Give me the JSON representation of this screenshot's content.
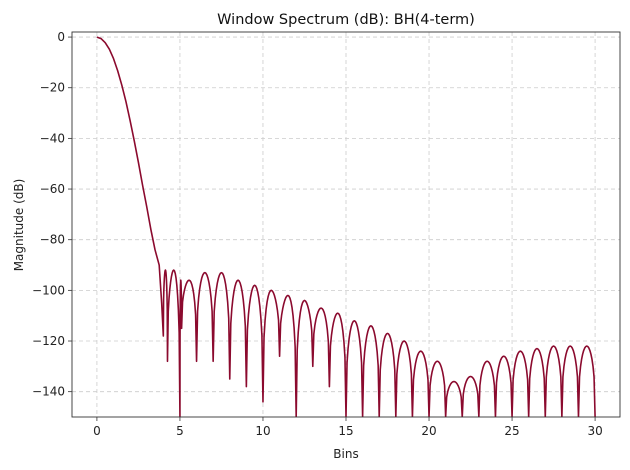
{
  "chart_data": {
    "type": "line",
    "title": "Window Spectrum (dB): BH(4-term)",
    "xlabel": "Bins",
    "ylabel": "Magnitude (dB)",
    "xlim": [
      -1.5,
      31.5
    ],
    "ylim": [
      -150,
      2
    ],
    "xticks": [
      0,
      5,
      10,
      15,
      20,
      25,
      30
    ],
    "yticks": [
      0,
      -20,
      -40,
      -60,
      -80,
      -100,
      -120,
      -140
    ],
    "grid": true,
    "series": [
      {
        "color": "#8b0a2e",
        "x": [
          0,
          0.25,
          0.5,
          0.75,
          1.0,
          1.25,
          1.5,
          1.75,
          2.0,
          2.25,
          2.5,
          2.75,
          3.0,
          3.25,
          3.5,
          3.75,
          3.9,
          4.0
        ],
        "y": [
          0,
          -0.6,
          -2.2,
          -4.8,
          -8.5,
          -13.3,
          -19.0,
          -25.5,
          -33.0,
          -41.0,
          -49.5,
          -58.5,
          -67.0,
          -76.0,
          -84.0,
          -90.0,
          -105.0,
          -118.0
        ]
      }
    ],
    "sidelobes": {
      "x": [
        4.5,
        5.5,
        6.5,
        7.5,
        8.5,
        9.5,
        10.5,
        11.5,
        12.5,
        13.5,
        14.5,
        15.5,
        16.5,
        17.5,
        18.5,
        19.5,
        20.5,
        21.5,
        22.5,
        23.5,
        24.5,
        25.5,
        26.5,
        27.5,
        28.5,
        29.5
      ],
      "y": [
        -92,
        -96,
        -93,
        -93,
        -96,
        -98,
        -100,
        -102,
        -104,
        -107,
        -109,
        -112,
        -114,
        -117,
        -120,
        -124,
        -128,
        -136,
        -134,
        -128,
        -126,
        -124,
        -123,
        -122,
        -122,
        -122
      ]
    },
    "nulls": {
      "x": [
        4.0,
        4.25,
        5.0,
        5.1,
        6.0,
        7.0,
        8.0,
        9.0,
        10.0,
        11.0,
        12.0,
        13.0,
        14.0,
        15.0,
        16.0,
        17.0,
        18.0,
        19.0,
        20.0,
        21.0,
        22.0,
        23.0,
        24.0,
        25.0,
        26.0,
        27.0,
        28.0,
        29.0,
        30.0
      ],
      "y": [
        -118,
        -128,
        -150,
        -115,
        -128,
        -128,
        -135,
        -138,
        -144,
        -126,
        -150,
        -130,
        -138,
        -150,
        -150,
        -150,
        -150,
        -150,
        -150,
        -150,
        -150,
        -150,
        -150,
        -150,
        -150,
        -150,
        -150,
        -150,
        -150
      ]
    }
  }
}
